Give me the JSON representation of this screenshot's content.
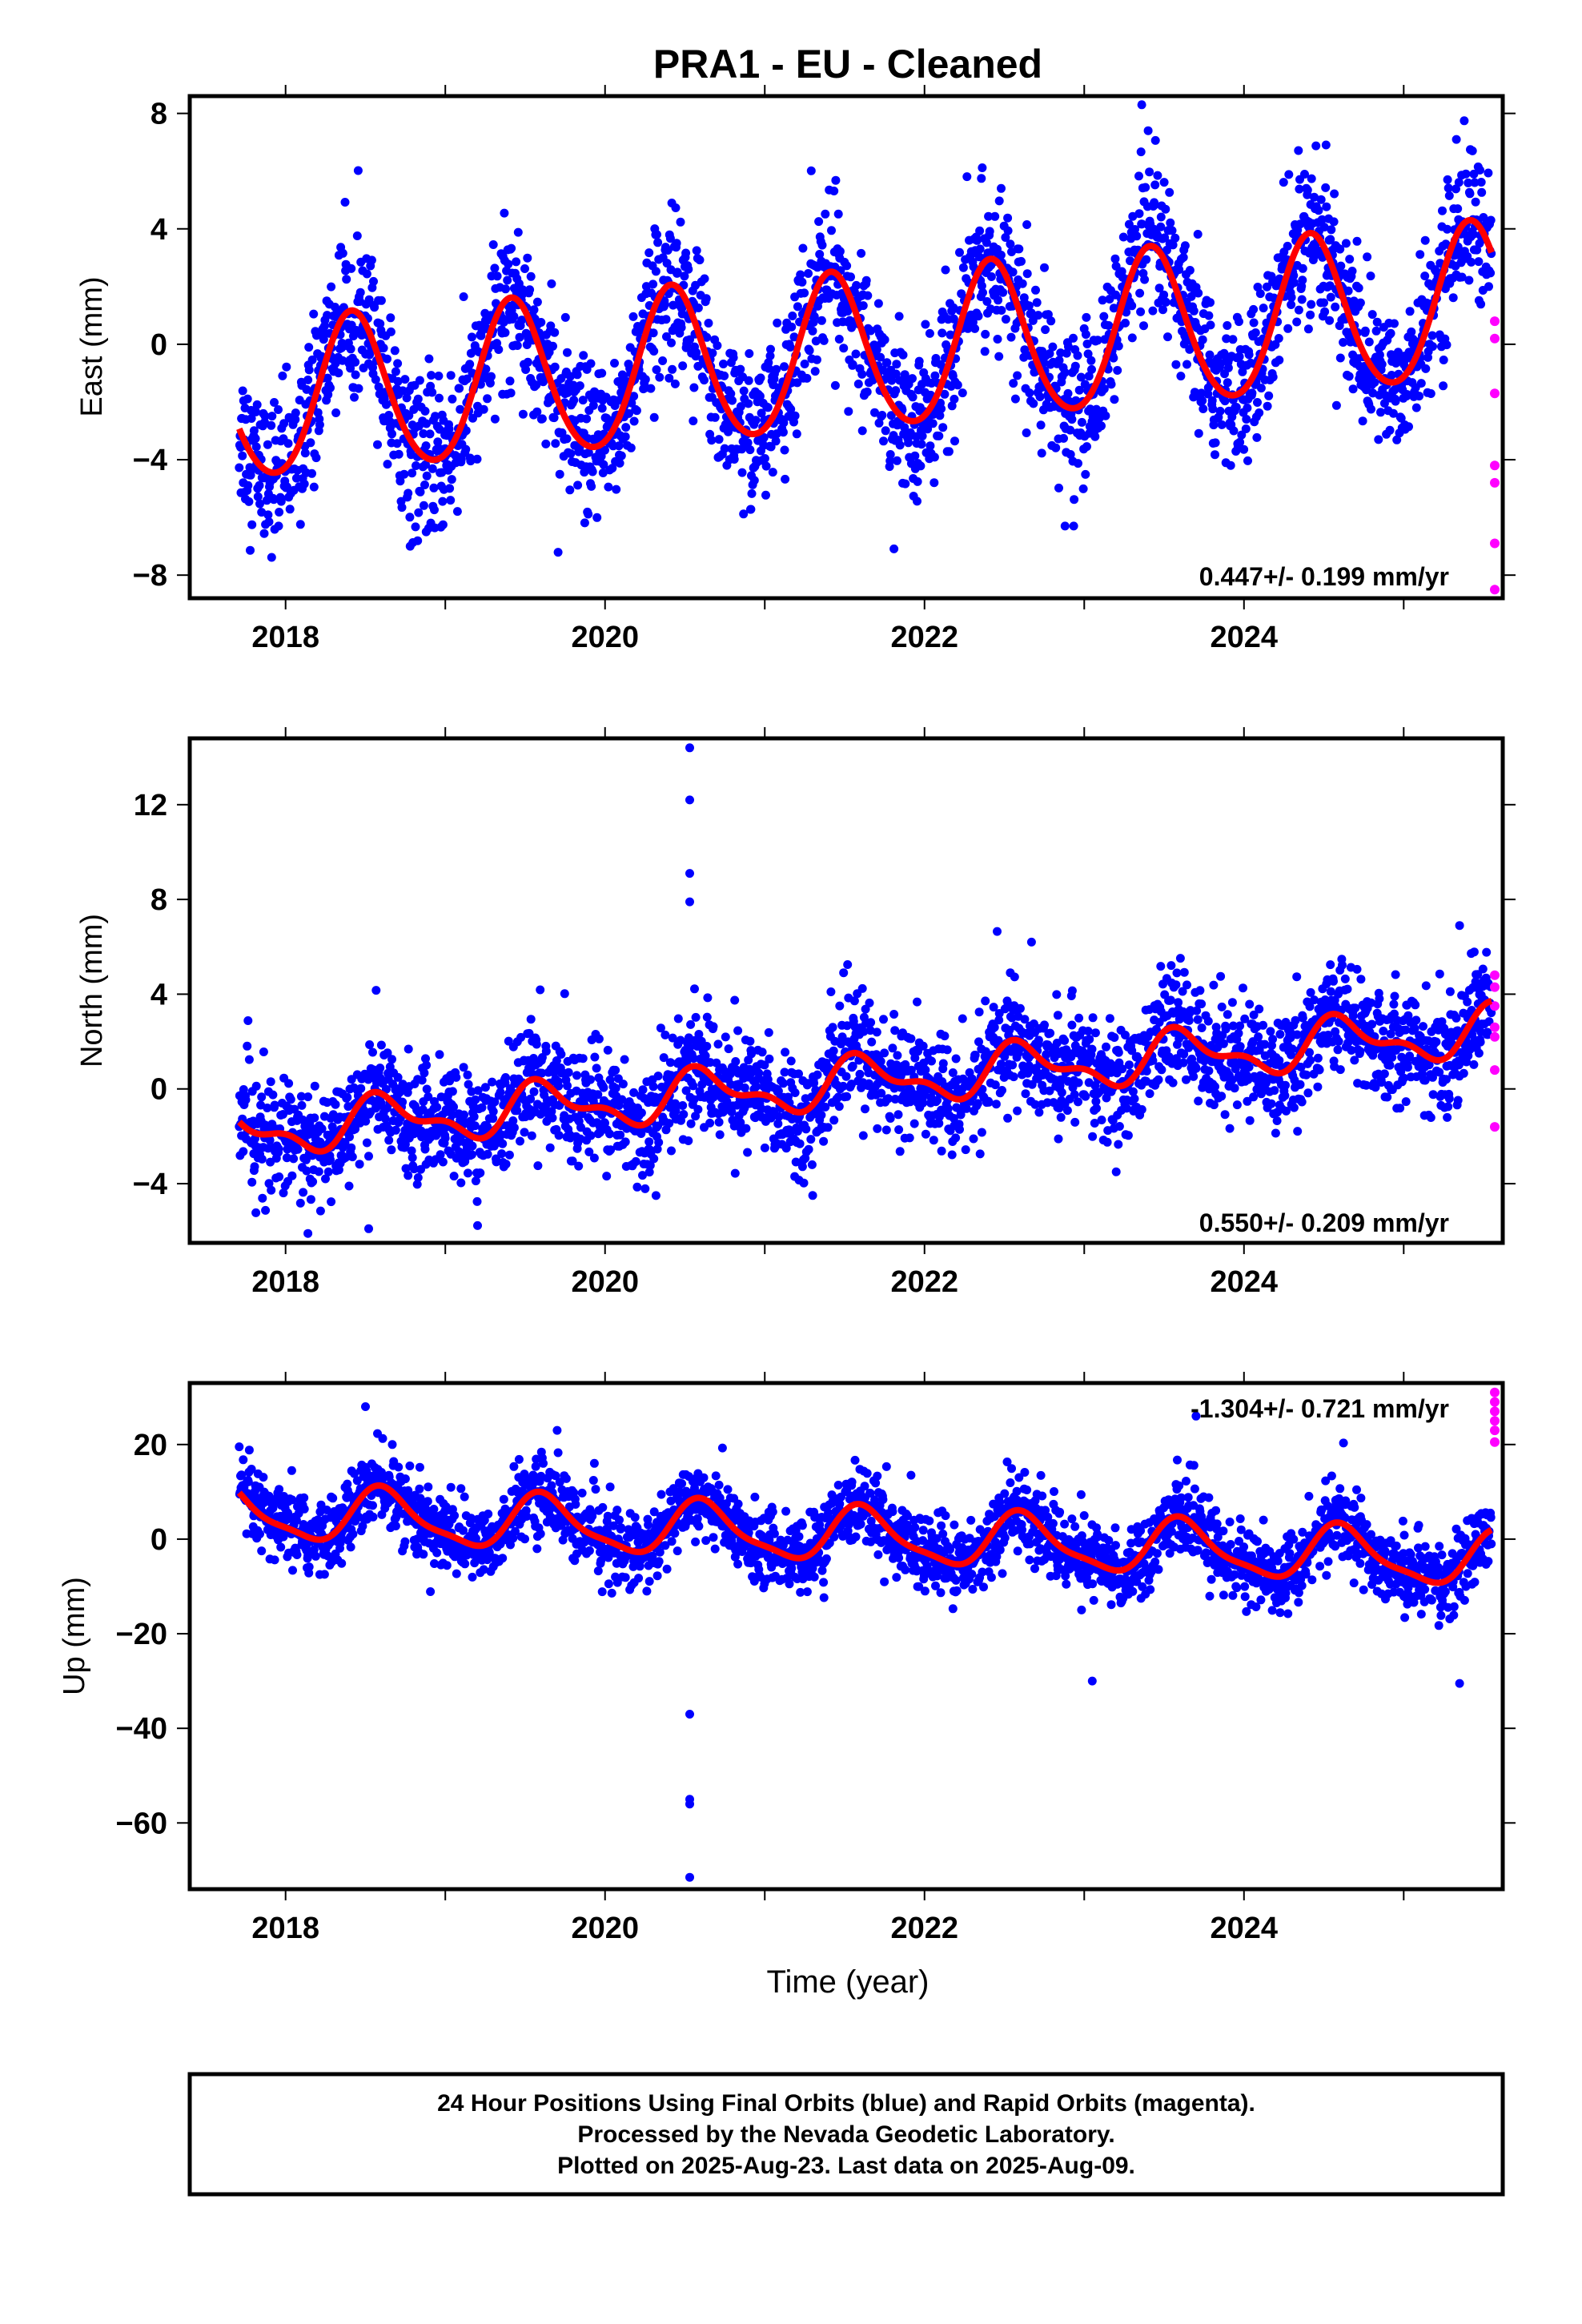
{
  "figure": {
    "title": "PRA1  - EU - Cleaned",
    "xlabel": "Time (year)",
    "caption": [
      "24 Hour Positions Using Final Orbits (blue) and Rapid Orbits (magenta).",
      "Processed by the Nevada Geodetic Laboratory.",
      "Plotted on 2025-Aug-23. Last data on 2025-Aug-09."
    ]
  },
  "colors": {
    "final": "#0000ff",
    "rapid": "#ff00ff",
    "model": "#ff0000",
    "frame": "#000000"
  },
  "chart_data": [
    {
      "type": "scatter",
      "ylabel": "East (mm)",
      "rate_label": "0.447+/- 0.199 mm/yr",
      "rate_position": "bottom-right",
      "xlim": [
        2017.4,
        2025.62
      ],
      "ylim": [
        -8.8,
        8.6
      ],
      "xticks": [
        2018,
        2020,
        2022,
        2024
      ],
      "yticks": [
        -8,
        -4,
        0,
        4,
        8
      ],
      "model": {
        "a0": -0.3,
        "rate": 0.447,
        "t0": 2021.7,
        "amp": 2.7,
        "period": 1.0,
        "peak": 2018.42,
        "amp2": 0.25,
        "phase2": 0.3
      },
      "final_range": [
        2017.71,
        2025.55
      ],
      "scatter_sigma": 1.3,
      "rapid": [
        [
          2025.57,
          0.8
        ],
        [
          2025.57,
          0.2
        ],
        [
          2025.57,
          -1.7
        ],
        [
          2025.57,
          -4.2
        ],
        [
          2025.57,
          -4.8
        ],
        [
          2025.57,
          -6.9
        ],
        [
          2025.57,
          -8.5
        ]
      ],
      "outliers": [
        [
          2018.78,
          -7.0
        ],
        [
          2018.88,
          -6.5
        ],
        [
          2022.88,
          -6.3
        ],
        [
          2023.36,
          8.3
        ],
        [
          2023.4,
          7.4
        ],
        [
          2025.33,
          7.1
        ],
        [
          2022.48,
          5.4
        ]
      ],
      "grid": false,
      "legend": "none"
    },
    {
      "type": "scatter",
      "ylabel": "North (mm)",
      "rate_label": "0.550+/- 0.209 mm/yr",
      "rate_position": "bottom-right",
      "xlim": [
        2017.4,
        2025.62
      ],
      "ylim": [
        -6.5,
        14.8
      ],
      "xticks": [
        2018,
        2020,
        2022,
        2024
      ],
      "yticks": [
        -4,
        0,
        4,
        8,
        12
      ],
      "model": {
        "a0": 0.35,
        "rate": 0.55,
        "t0": 2021.7,
        "amp": 0.9,
        "period": 1.0,
        "peak": 2018.62,
        "amp2": 0.45,
        "phase2": 1.2
      },
      "final_range": [
        2017.71,
        2025.55
      ],
      "scatter_sigma": 1.2,
      "rapid": [
        [
          2025.57,
          4.8
        ],
        [
          2025.57,
          4.3
        ],
        [
          2025.57,
          3.5
        ],
        [
          2025.57,
          2.6
        ],
        [
          2025.57,
          2.2
        ],
        [
          2025.57,
          0.8
        ],
        [
          2025.57,
          -1.6
        ]
      ],
      "outliers": [
        [
          2020.53,
          14.4
        ],
        [
          2020.53,
          12.2
        ],
        [
          2020.53,
          9.1
        ],
        [
          2020.53,
          7.9
        ],
        [
          2018.14,
          -6.1
        ],
        [
          2018.52,
          -5.9
        ],
        [
          2021.3,
          -4.5
        ],
        [
          2023.2,
          -3.5
        ],
        [
          2025.35,
          6.9
        ],
        [
          2022.67,
          6.2
        ]
      ],
      "grid": false,
      "legend": "none"
    },
    {
      "type": "scatter",
      "ylabel": "Up (mm)",
      "rate_label": "-1.304+/- 0.721 mm/yr",
      "rate_position": "top-right",
      "xlim": [
        2017.4,
        2025.62
      ],
      "ylim": [
        -74,
        33
      ],
      "xticks": [
        2018,
        2020,
        2022,
        2024
      ],
      "yticks": [
        -60,
        -40,
        -20,
        0,
        20
      ],
      "model": {
        "a0": 0.5,
        "rate": -1.304,
        "t0": 2021.7,
        "amp": 5.5,
        "period": 1.0,
        "peak": 2018.62,
        "amp2": 1.5,
        "phase2": 0.8
      },
      "final_range": [
        2017.71,
        2025.55
      ],
      "scatter_sigma": 4.0,
      "rapid": [
        [
          2025.57,
          31
        ],
        [
          2025.57,
          29
        ],
        [
          2025.57,
          27
        ],
        [
          2025.57,
          25
        ],
        [
          2025.57,
          23
        ],
        [
          2025.57,
          20.5
        ]
      ],
      "outliers": [
        [
          2020.53,
          -37
        ],
        [
          2020.53,
          -55
        ],
        [
          2020.53,
          -56
        ],
        [
          2020.53,
          -71.5
        ],
        [
          2023.05,
          -30
        ],
        [
          2025.35,
          -30.5
        ],
        [
          2018.5,
          28
        ],
        [
          2023.7,
          26
        ],
        [
          2019.7,
          23
        ]
      ],
      "grid": false,
      "legend": "none"
    }
  ]
}
